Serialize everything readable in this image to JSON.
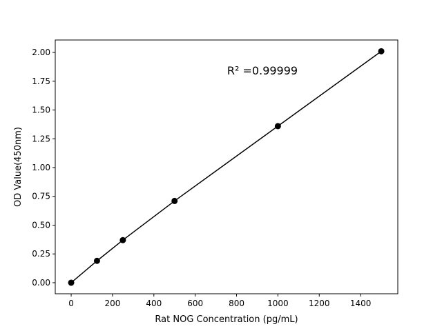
{
  "chart_data": {
    "type": "line",
    "title": "",
    "xlabel": "Rat NOG Concentration (pg/mL)",
    "ylabel": "OD Value(450nm)",
    "annotation": "R² =0.99999",
    "xlim": [
      -77,
      1580
    ],
    "ylim": [
      -0.096,
      2.108
    ],
    "xticks": [
      0,
      200,
      400,
      600,
      800,
      1000,
      1200,
      1400
    ],
    "yticks": [
      "0.00",
      "0.25",
      "0.50",
      "0.75",
      "1.00",
      "1.25",
      "1.50",
      "1.75",
      "2.00"
    ],
    "grid": false,
    "color": "#000000",
    "series": [
      {
        "x": [
          0,
          125,
          250,
          500,
          1000,
          1500
        ],
        "y": [
          0.0,
          0.19,
          0.37,
          0.71,
          1.36,
          2.01
        ],
        "marker": "circle"
      }
    ]
  }
}
